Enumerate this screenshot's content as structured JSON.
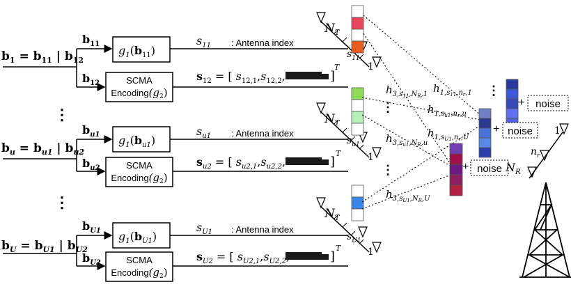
{
  "users": [
    {
      "id": "1",
      "split": [
        "b",
        "1",
        "=",
        "b",
        "11",
        "|",
        "b",
        "12"
      ],
      "b1": "b11",
      "b2": "b12",
      "g1_label": "g1(b11)",
      "s1": "s11",
      "s1_label": ": Antenna index",
      "s2_eq": "s12 = [s12,1, s12,2, …]T",
      "antenna_tag": "s11"
    },
    {
      "id": "u",
      "b1": "bu1",
      "b2": "bu2",
      "g1_label": "g1(bu1)",
      "s1": "su1",
      "s1_label": ": Antenna index",
      "s2_eq": "su2 = [su2,1, su2,2, …]T",
      "antenna_tag": "su1"
    },
    {
      "id": "U",
      "b1": "bU1",
      "b2": "bU2",
      "g1_label": "g1(bU1)",
      "s1": "sU1",
      "s1_label": ": Antenna index",
      "s2_eq": "sU2 = [sU2,1, sU2,2, …]T",
      "antenna_tag": "sU1"
    }
  ],
  "labels": {
    "antenna_index": ": Antenna index",
    "scma_line1": "SCMA",
    "scma_line2": "Encoding",
    "noise": "noise",
    "plus": "+",
    "nt": "N",
    "nt_sub": "T",
    "nr": "N",
    "nr_sub": "R",
    "nr_small": "n",
    "nr_small_sub": "r",
    "one": "1",
    "dots": "⋮"
  },
  "channels": [
    "h1,s11,nr,1",
    "h3,s11,NR,1",
    "h1,su1,nr,u",
    "h3,su1,NR,u",
    "h1,sU1,nr,U",
    "h3,sU1,NR,U"
  ],
  "colors": {
    "user1_blocks": [
      "#ffffff",
      "#e8455e",
      "#ffffff",
      "#e85a1e"
    ],
    "useru_blocks": [
      "#8fdc5a",
      "#ffffff",
      "#b8eeb8",
      "#ffffff"
    ],
    "userU_blocks": [
      "#ffffff",
      "#3a86e8",
      "#ffffff"
    ],
    "rx_stack_1": [
      "#2a3a9a",
      "#4058d8",
      "#3848b8",
      "#6070f0",
      "#5060e0"
    ],
    "rx_stack_2": [
      "#7040b0",
      "#a01048",
      "#6a1a80",
      "#8a2060",
      "#b02040"
    ],
    "rx_stack_3": [
      "#7080c8",
      "#2a3a90",
      "#4a72d8",
      "#5a8ae8",
      "#2a40a8"
    ]
  }
}
